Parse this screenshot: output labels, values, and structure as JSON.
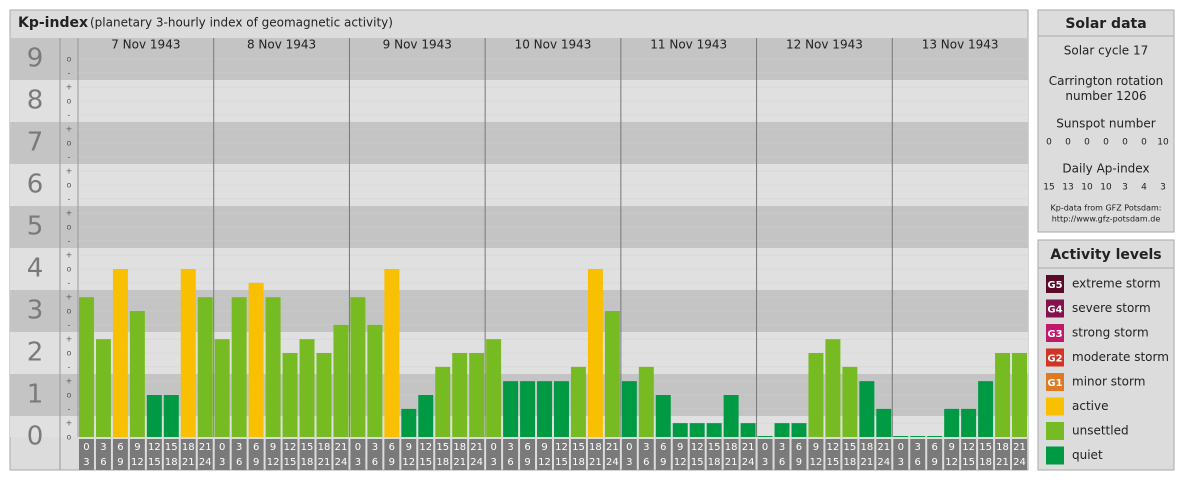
{
  "header": {
    "title": "Kp-index",
    "subtitle": "(planetary 3-hourly index of geomagnetic activity)"
  },
  "chart_data": {
    "type": "bar",
    "ylim": [
      0,
      9.5
    ],
    "yticks": [
      0,
      1,
      2,
      3,
      4,
      5,
      6,
      7,
      8,
      9
    ],
    "minor_ticks": [
      {
        "value": 0,
        "label": "o"
      },
      {
        "value": 0.33,
        "label": "+"
      },
      {
        "value": 0.67,
        "label": "-"
      },
      {
        "value": 1,
        "label": "o"
      },
      {
        "value": 1.33,
        "label": "+"
      },
      {
        "value": 1.67,
        "label": "-"
      },
      {
        "value": 2,
        "label": "o"
      },
      {
        "value": 2.33,
        "label": "+"
      },
      {
        "value": 2.67,
        "label": "-"
      },
      {
        "value": 3,
        "label": "o"
      },
      {
        "value": 3.33,
        "label": "+"
      },
      {
        "value": 3.67,
        "label": "-"
      },
      {
        "value": 4,
        "label": "o"
      },
      {
        "value": 4.33,
        "label": "+"
      },
      {
        "value": 4.67,
        "label": "-"
      },
      {
        "value": 5,
        "label": "o"
      },
      {
        "value": 5.33,
        "label": "+"
      },
      {
        "value": 5.67,
        "label": "-"
      },
      {
        "value": 6,
        "label": "o"
      },
      {
        "value": 6.33,
        "label": "+"
      },
      {
        "value": 6.67,
        "label": "-"
      },
      {
        "value": 7,
        "label": "o"
      },
      {
        "value": 7.33,
        "label": "+"
      },
      {
        "value": 7.67,
        "label": "-"
      },
      {
        "value": 8,
        "label": "o"
      },
      {
        "value": 8.33,
        "label": "+"
      },
      {
        "value": 8.67,
        "label": "-"
      },
      {
        "value": 9,
        "label": "o"
      }
    ],
    "hours_from": [
      0,
      3,
      6,
      9,
      12,
      15,
      18,
      21
    ],
    "hours_to": [
      3,
      6,
      9,
      12,
      15,
      18,
      21,
      24
    ],
    "days": [
      {
        "date": "7 Nov 1943",
        "values": [
          3.33,
          2.33,
          4,
          3,
          1,
          1,
          4,
          3.33
        ],
        "colors": [
          "#77bb22",
          "#77bb22",
          "#f8c000",
          "#77bb22",
          "#009944",
          "#009944",
          "#f8c000",
          "#77bb22"
        ]
      },
      {
        "date": "8 Nov 1943",
        "values": [
          2.33,
          3.33,
          3.67,
          3.33,
          2,
          2.33,
          2,
          2.67
        ],
        "colors": [
          "#77bb22",
          "#77bb22",
          "#f8c000",
          "#77bb22",
          "#77bb22",
          "#77bb22",
          "#77bb22",
          "#77bb22"
        ]
      },
      {
        "date": "9 Nov 1943",
        "values": [
          3.33,
          2.67,
          4,
          0.67,
          1,
          1.67,
          2,
          2
        ],
        "colors": [
          "#77bb22",
          "#77bb22",
          "#f8c000",
          "#009944",
          "#009944",
          "#77bb22",
          "#77bb22",
          "#77bb22"
        ]
      },
      {
        "date": "10 Nov 1943",
        "values": [
          2.33,
          1.33,
          1.33,
          1.33,
          1.33,
          1.67,
          4,
          3
        ],
        "colors": [
          "#77bb22",
          "#009944",
          "#009944",
          "#009944",
          "#009944",
          "#77bb22",
          "#f8c000",
          "#77bb22"
        ]
      },
      {
        "date": "11 Nov 1943",
        "values": [
          1.33,
          1.67,
          1,
          0.33,
          0.33,
          0.33,
          1,
          0.33
        ],
        "colors": [
          "#009944",
          "#77bb22",
          "#009944",
          "#009944",
          "#009944",
          "#009944",
          "#009944",
          "#009944"
        ]
      },
      {
        "date": "12 Nov 1943",
        "values": [
          0,
          0.33,
          0.33,
          2,
          2.33,
          1.67,
          1.33,
          0.67
        ],
        "colors": [
          "#009944",
          "#009944",
          "#009944",
          "#77bb22",
          "#77bb22",
          "#77bb22",
          "#009944",
          "#009944"
        ]
      },
      {
        "date": "13 Nov 1943",
        "values": [
          0,
          0,
          0,
          0.67,
          0.67,
          1.33,
          2,
          2
        ],
        "colors": [
          "#009944",
          "#009944",
          "#009944",
          "#009944",
          "#009944",
          "#009944",
          "#77bb22",
          "#77bb22"
        ]
      }
    ]
  },
  "solar": {
    "title": "Solar data",
    "cycle": "Solar cycle 17",
    "carrington": "Carrington rotation number 1206",
    "sunspot_title": "Sunspot number",
    "sunspot": [
      0,
      0,
      0,
      0,
      0,
      0,
      10
    ],
    "ap_title": "Daily Ap-index",
    "ap": [
      15,
      13,
      10,
      10,
      3,
      4,
      3
    ],
    "source": "Kp-data from GFZ Potsdam:",
    "url": "http://www.gfz-potsdam.de"
  },
  "activity": {
    "title": "Activity levels",
    "levels": [
      {
        "code": "G5",
        "label": "extreme storm",
        "color": "#5a0a28"
      },
      {
        "code": "G4",
        "label": "severe storm",
        "color": "#84124c"
      },
      {
        "code": "G3",
        "label": "strong storm",
        "color": "#c0186a"
      },
      {
        "code": "G2",
        "label": "moderate storm",
        "color": "#d03424"
      },
      {
        "code": "G1",
        "label": "minor storm",
        "color": "#e07a22"
      },
      {
        "code": null,
        "label": "active",
        "color": "#f8c000"
      },
      {
        "code": null,
        "label": "unsettled",
        "color": "#77bb22"
      },
      {
        "code": null,
        "label": "quiet",
        "color": "#009944"
      }
    ]
  }
}
